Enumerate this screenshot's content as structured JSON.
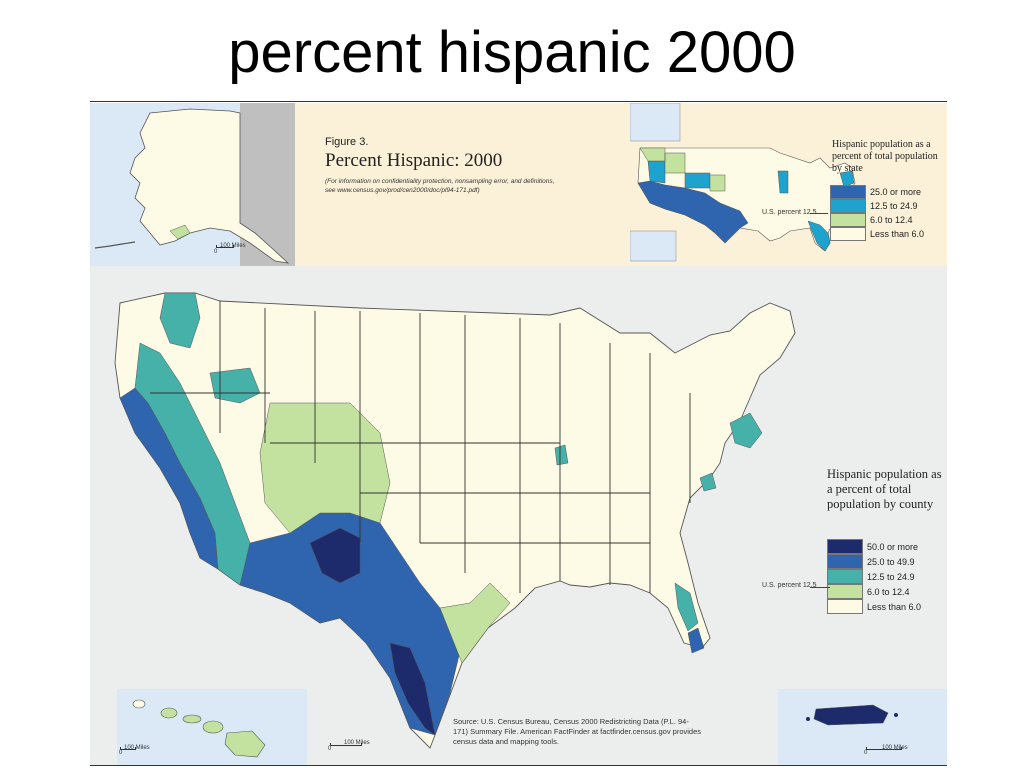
{
  "slide": {
    "title": "percent hispanic 2000"
  },
  "figure": {
    "label": "Figure 3.",
    "title": "Percent Hispanic: 2000",
    "note": "(For information on confidentiality protection, nonsampling error, and definitions, see www.census.gov/prod/cen2000/doc/pl94-171.pdf)"
  },
  "colors": {
    "cat_50_plus": "#1d2a6b",
    "cat_25_499": "#2f64ae",
    "cat_125_249": "#45b1a8",
    "cat_6_124": "#c3e2a0",
    "cat_lt_6": "#fdfbe6",
    "state_25_plus": "#2f64ae",
    "state_125_249": "#1ea3cf",
    "boundary": "#555555",
    "water": "#dbe9f6",
    "band": "#fbf1d8"
  },
  "state_legend": {
    "title": "Hispanic population as a percent of total population by state",
    "us_percent": "U.S. percent 12.5",
    "items": [
      {
        "label": "25.0 or more",
        "color": "#2f64ae"
      },
      {
        "label": "12.5 to 24.9",
        "color": "#1ea3cf"
      },
      {
        "label": "6.0 to 12.4",
        "color": "#c3e2a0"
      },
      {
        "label": "Less than 6.0",
        "color": "#fdfbe6"
      }
    ]
  },
  "county_legend": {
    "title": "Hispanic population as a percent of total population by county",
    "us_percent": "U.S. percent 12.5",
    "items": [
      {
        "label": "50.0 or more",
        "color": "#1d2a6b"
      },
      {
        "label": "25.0 to 49.9",
        "color": "#2f64ae"
      },
      {
        "label": "12.5 to 24.9",
        "color": "#45b1a8"
      },
      {
        "label": "6.0 to 12.4",
        "color": "#c3e2a0"
      },
      {
        "label": "Less than 6.0",
        "color": "#fdfbe6"
      }
    ]
  },
  "source": "Source: U.S. Census Bureau, Census 2000 Redistricting Data (P.L. 94-171) Summary File. American FactFinder at factfinder.census.gov provides census data and mapping tools.",
  "scales": {
    "alaska": "100 Miles",
    "hawaii": "100 Miles",
    "mainland": "100 Miles",
    "puerto_rico": "100 Miles",
    "zero": "0"
  }
}
